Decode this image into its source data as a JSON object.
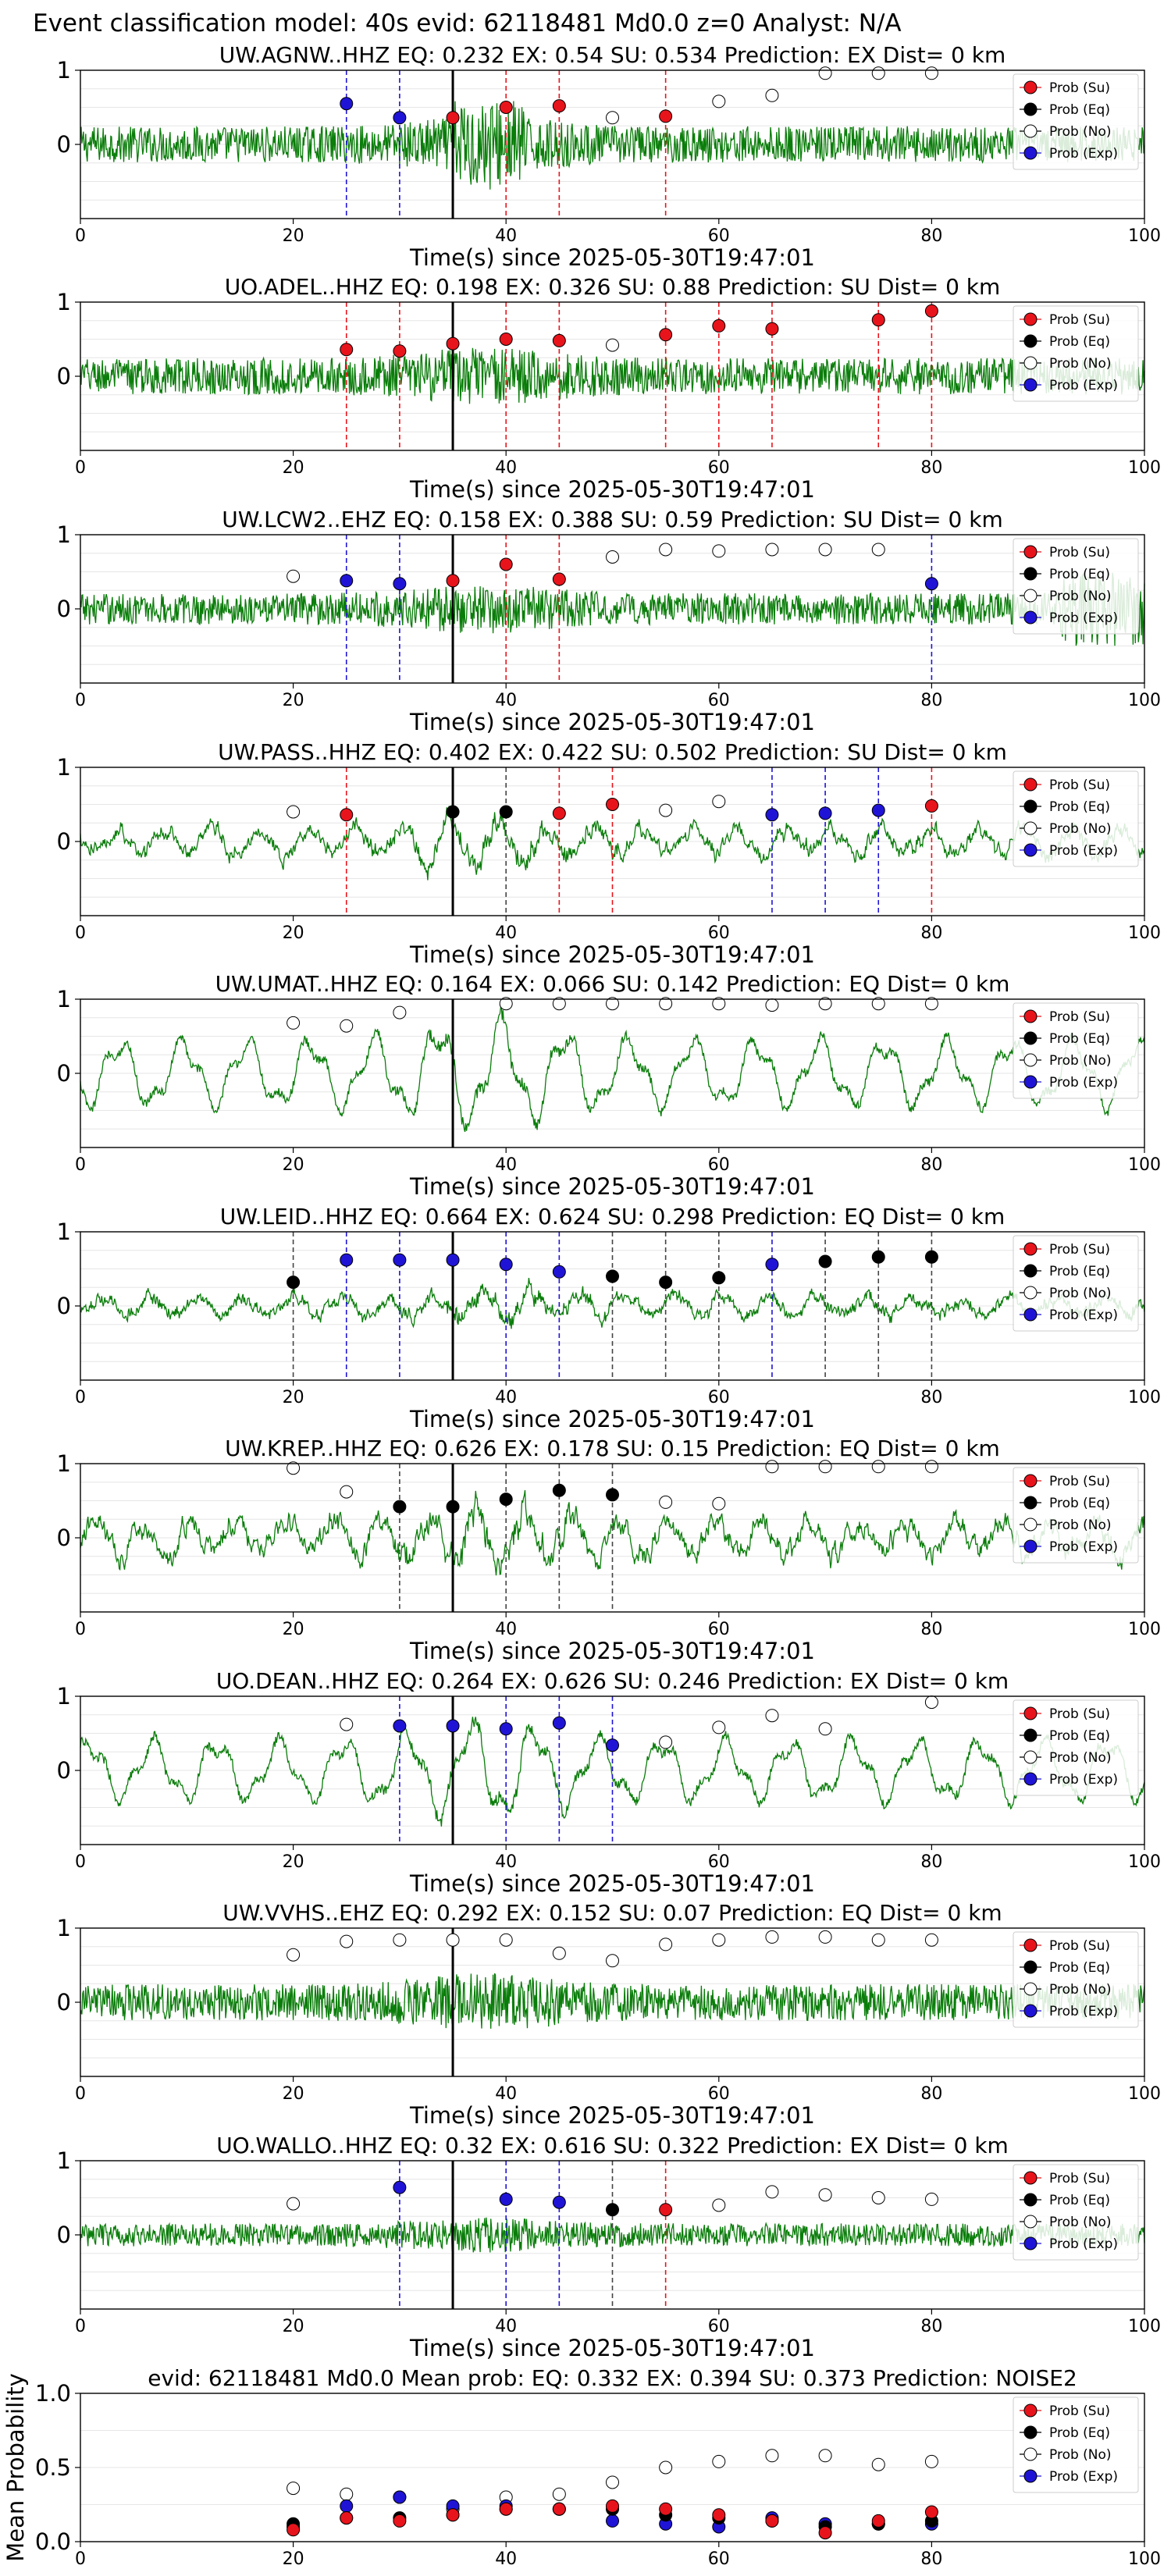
{
  "figure": {
    "title": "Event classification model: 40s evid: 62118481 Md0.0 z=0 Analyst: N/A",
    "xlabel": "Time(s) since 2025-05-30T19:47:01",
    "legend": [
      "Prob (Su)",
      "Prob (Eq)",
      "Prob (No)",
      "Prob (Exp)"
    ],
    "colors": {
      "su": "#e8141c",
      "eq": "#000000",
      "no": "#ffffff",
      "exp": "#1f14d6",
      "wave": "#0a7d0a"
    },
    "xlim": [
      0,
      100
    ],
    "ylim_station": [
      -1,
      1
    ],
    "yticks_station": [
      "1",
      "0"
    ],
    "xticks": [
      "0",
      "20",
      "40",
      "60",
      "80",
      "100"
    ],
    "arrival_time": 35
  },
  "chart_data": [
    {
      "type": "line",
      "station": "UW.AGNW..HHZ",
      "title": "UW.AGNW..HHZ   EQ: 0.232  EX: 0.54  SU: 0.534   Prediction: EX    Dist= 0 km",
      "wave_style": "noisy",
      "wave_amp": 0.35,
      "points": [
        {
          "x": 25,
          "y": 0.55,
          "c": "exp"
        },
        {
          "x": 30,
          "y": 0.36,
          "c": "exp"
        },
        {
          "x": 35,
          "y": 0.36,
          "c": "su"
        },
        {
          "x": 40,
          "y": 0.5,
          "c": "su"
        },
        {
          "x": 45,
          "y": 0.52,
          "c": "su"
        },
        {
          "x": 50,
          "y": 0.36,
          "c": "no"
        },
        {
          "x": 55,
          "y": 0.38,
          "c": "su"
        },
        {
          "x": 60,
          "y": 0.58,
          "c": "no"
        },
        {
          "x": 65,
          "y": 0.66,
          "c": "no"
        },
        {
          "x": 70,
          "y": 0.96,
          "c": "no"
        },
        {
          "x": 75,
          "y": 0.96,
          "c": "no"
        },
        {
          "x": 80,
          "y": 0.96,
          "c": "no"
        }
      ]
    },
    {
      "type": "line",
      "station": "UO.ADEL..HHZ",
      "title": "UO.ADEL..HHZ   EQ: 0.198  EX: 0.326  SU: 0.88   Prediction: SU    Dist= 0 km",
      "wave_style": "noisy",
      "wave_amp": 0.35,
      "points": [
        {
          "x": 25,
          "y": 0.36,
          "c": "su"
        },
        {
          "x": 30,
          "y": 0.34,
          "c": "su"
        },
        {
          "x": 35,
          "y": 0.44,
          "c": "su"
        },
        {
          "x": 40,
          "y": 0.5,
          "c": "su"
        },
        {
          "x": 45,
          "y": 0.48,
          "c": "su"
        },
        {
          "x": 50,
          "y": 0.42,
          "c": "no"
        },
        {
          "x": 55,
          "y": 0.56,
          "c": "su"
        },
        {
          "x": 60,
          "y": 0.68,
          "c": "su"
        },
        {
          "x": 65,
          "y": 0.64,
          "c": "su"
        },
        {
          "x": 75,
          "y": 0.76,
          "c": "su"
        },
        {
          "x": 80,
          "y": 0.88,
          "c": "su"
        }
      ]
    },
    {
      "type": "line",
      "station": "UW.LCW2..EHZ",
      "title": "UW.LCW2..EHZ   EQ: 0.158  EX: 0.388  SU: 0.59   Prediction: SU    Dist= 0 km",
      "wave_style": "noisy",
      "wave_amp": 0.3,
      "points": [
        {
          "x": 20,
          "y": 0.44,
          "c": "no"
        },
        {
          "x": 25,
          "y": 0.38,
          "c": "exp"
        },
        {
          "x": 30,
          "y": 0.34,
          "c": "exp"
        },
        {
          "x": 35,
          "y": 0.38,
          "c": "su"
        },
        {
          "x": 40,
          "y": 0.6,
          "c": "su"
        },
        {
          "x": 45,
          "y": 0.4,
          "c": "su"
        },
        {
          "x": 50,
          "y": 0.7,
          "c": "no"
        },
        {
          "x": 55,
          "y": 0.8,
          "c": "no"
        },
        {
          "x": 60,
          "y": 0.78,
          "c": "no"
        },
        {
          "x": 65,
          "y": 0.8,
          "c": "no"
        },
        {
          "x": 70,
          "y": 0.8,
          "c": "no"
        },
        {
          "x": 75,
          "y": 0.8,
          "c": "no"
        },
        {
          "x": 80,
          "y": 0.34,
          "c": "exp"
        }
      ]
    },
    {
      "type": "line",
      "station": "UW.PASS..HHZ",
      "title": "UW.PASS..HHZ   EQ: 0.402  EX: 0.422  SU: 0.502   Prediction: SU    Dist= 0 km",
      "wave_style": "medium",
      "wave_amp": 0.35,
      "points": [
        {
          "x": 20,
          "y": 0.4,
          "c": "no"
        },
        {
          "x": 25,
          "y": 0.36,
          "c": "su"
        },
        {
          "x": 35,
          "y": 0.4,
          "c": "eq"
        },
        {
          "x": 40,
          "y": 0.4,
          "c": "eq"
        },
        {
          "x": 45,
          "y": 0.38,
          "c": "su"
        },
        {
          "x": 50,
          "y": 0.5,
          "c": "su"
        },
        {
          "x": 55,
          "y": 0.42,
          "c": "no"
        },
        {
          "x": 60,
          "y": 0.54,
          "c": "no"
        },
        {
          "x": 65,
          "y": 0.36,
          "c": "exp"
        },
        {
          "x": 70,
          "y": 0.38,
          "c": "exp"
        },
        {
          "x": 75,
          "y": 0.42,
          "c": "exp"
        },
        {
          "x": 80,
          "y": 0.48,
          "c": "su"
        }
      ]
    },
    {
      "type": "line",
      "station": "UW.UMAT..HHZ",
      "title": "UW.UMAT..HHZ   EQ: 0.164  EX: 0.066  SU: 0.142   Prediction: EQ    Dist= 0 km",
      "wave_style": "smooth",
      "wave_amp": 0.55,
      "points": [
        {
          "x": 20,
          "y": 0.68,
          "c": "no"
        },
        {
          "x": 25,
          "y": 0.64,
          "c": "no"
        },
        {
          "x": 30,
          "y": 0.82,
          "c": "no"
        },
        {
          "x": 40,
          "y": 0.94,
          "c": "no"
        },
        {
          "x": 45,
          "y": 0.94,
          "c": "no"
        },
        {
          "x": 50,
          "y": 0.94,
          "c": "no"
        },
        {
          "x": 55,
          "y": 0.94,
          "c": "no"
        },
        {
          "x": 60,
          "y": 0.94,
          "c": "no"
        },
        {
          "x": 65,
          "y": 0.92,
          "c": "no"
        },
        {
          "x": 70,
          "y": 0.94,
          "c": "no"
        },
        {
          "x": 75,
          "y": 0.94,
          "c": "no"
        },
        {
          "x": 80,
          "y": 0.94,
          "c": "no"
        }
      ]
    },
    {
      "type": "line",
      "station": "UW.LEID..HHZ",
      "title": "UW.LEID..HHZ   EQ: 0.664  EX: 0.624  SU: 0.298   Prediction: EQ    Dist= 0 km",
      "wave_style": "medium",
      "wave_amp": 0.25,
      "points": [
        {
          "x": 20,
          "y": 0.32,
          "c": "eq"
        },
        {
          "x": 25,
          "y": 0.62,
          "c": "exp"
        },
        {
          "x": 30,
          "y": 0.62,
          "c": "exp"
        },
        {
          "x": 35,
          "y": 0.62,
          "c": "exp"
        },
        {
          "x": 40,
          "y": 0.56,
          "c": "exp"
        },
        {
          "x": 45,
          "y": 0.46,
          "c": "exp"
        },
        {
          "x": 50,
          "y": 0.4,
          "c": "eq"
        },
        {
          "x": 55,
          "y": 0.32,
          "c": "eq"
        },
        {
          "x": 60,
          "y": 0.38,
          "c": "eq"
        },
        {
          "x": 65,
          "y": 0.56,
          "c": "exp"
        },
        {
          "x": 70,
          "y": 0.6,
          "c": "eq"
        },
        {
          "x": 75,
          "y": 0.66,
          "c": "eq"
        },
        {
          "x": 80,
          "y": 0.66,
          "c": "eq"
        }
      ]
    },
    {
      "type": "line",
      "station": "UW.KREP..HHZ",
      "title": "UW.KREP..HHZ   EQ: 0.626  EX: 0.178  SU: 0.15   Prediction: EQ    Dist= 0 km",
      "wave_style": "medium",
      "wave_amp": 0.5,
      "points": [
        {
          "x": 20,
          "y": 0.94,
          "c": "no"
        },
        {
          "x": 25,
          "y": 0.62,
          "c": "no"
        },
        {
          "x": 30,
          "y": 0.42,
          "c": "eq"
        },
        {
          "x": 35,
          "y": 0.42,
          "c": "eq"
        },
        {
          "x": 40,
          "y": 0.52,
          "c": "eq"
        },
        {
          "x": 45,
          "y": 0.64,
          "c": "eq"
        },
        {
          "x": 50,
          "y": 0.58,
          "c": "eq"
        },
        {
          "x": 55,
          "y": 0.48,
          "c": "no"
        },
        {
          "x": 60,
          "y": 0.46,
          "c": "no"
        },
        {
          "x": 65,
          "y": 0.96,
          "c": "no"
        },
        {
          "x": 70,
          "y": 0.96,
          "c": "no"
        },
        {
          "x": 75,
          "y": 0.96,
          "c": "no"
        },
        {
          "x": 80,
          "y": 0.96,
          "c": "no"
        }
      ]
    },
    {
      "type": "line",
      "station": "UO.DEAN..HHZ",
      "title": "UO.DEAN..HHZ   EQ: 0.264  EX: 0.626  SU: 0.246   Prediction: EX    Dist= 0 km",
      "wave_style": "smooth",
      "wave_amp": 0.5,
      "points": [
        {
          "x": 25,
          "y": 0.62,
          "c": "no"
        },
        {
          "x": 30,
          "y": 0.6,
          "c": "exp"
        },
        {
          "x": 35,
          "y": 0.6,
          "c": "exp"
        },
        {
          "x": 40,
          "y": 0.56,
          "c": "exp"
        },
        {
          "x": 45,
          "y": 0.64,
          "c": "exp"
        },
        {
          "x": 50,
          "y": 0.34,
          "c": "exp"
        },
        {
          "x": 55,
          "y": 0.38,
          "c": "no"
        },
        {
          "x": 60,
          "y": 0.58,
          "c": "no"
        },
        {
          "x": 65,
          "y": 0.74,
          "c": "no"
        },
        {
          "x": 70,
          "y": 0.56,
          "c": "no"
        },
        {
          "x": 80,
          "y": 0.92,
          "c": "no"
        }
      ]
    },
    {
      "type": "line",
      "station": "UW.VVHS..EHZ",
      "title": "UW.VVHS..EHZ   EQ: 0.292  EX: 0.152  SU: 0.07   Prediction: EQ    Dist= 0 km",
      "wave_style": "noisy",
      "wave_amp": 0.35,
      "points": [
        {
          "x": 20,
          "y": 0.64,
          "c": "no"
        },
        {
          "x": 25,
          "y": 0.82,
          "c": "no"
        },
        {
          "x": 30,
          "y": 0.84,
          "c": "no"
        },
        {
          "x": 35,
          "y": 0.84,
          "c": "no"
        },
        {
          "x": 40,
          "y": 0.84,
          "c": "no"
        },
        {
          "x": 45,
          "y": 0.66,
          "c": "no"
        },
        {
          "x": 50,
          "y": 0.56,
          "c": "no"
        },
        {
          "x": 55,
          "y": 0.78,
          "c": "no"
        },
        {
          "x": 60,
          "y": 0.84,
          "c": "no"
        },
        {
          "x": 65,
          "y": 0.88,
          "c": "no"
        },
        {
          "x": 70,
          "y": 0.88,
          "c": "no"
        },
        {
          "x": 75,
          "y": 0.84,
          "c": "no"
        },
        {
          "x": 80,
          "y": 0.84,
          "c": "no"
        }
      ]
    },
    {
      "type": "line",
      "station": "UO.WALLO..HHZ",
      "title": "UO.WALLO..HHZ   EQ: 0.32  EX: 0.616  SU: 0.322   Prediction: EX    Dist= 0 km",
      "wave_style": "noisy",
      "wave_amp": 0.22,
      "points": [
        {
          "x": 20,
          "y": 0.42,
          "c": "no"
        },
        {
          "x": 30,
          "y": 0.64,
          "c": "exp"
        },
        {
          "x": 40,
          "y": 0.48,
          "c": "exp"
        },
        {
          "x": 45,
          "y": 0.44,
          "c": "exp"
        },
        {
          "x": 50,
          "y": 0.34,
          "c": "eq"
        },
        {
          "x": 55,
          "y": 0.34,
          "c": "su"
        },
        {
          "x": 60,
          "y": 0.4,
          "c": "no"
        },
        {
          "x": 65,
          "y": 0.58,
          "c": "no"
        },
        {
          "x": 70,
          "y": 0.54,
          "c": "no"
        },
        {
          "x": 75,
          "y": 0.5,
          "c": "no"
        },
        {
          "x": 80,
          "y": 0.48,
          "c": "no"
        }
      ]
    },
    {
      "type": "scatter",
      "title": "evid: 62118481  Md0.0   Mean prob:   EQ: 0.332  EX: 0.394  SU: 0.373   Prediction: NOISE2",
      "ylabel": "Mean Probability",
      "ylim": [
        0,
        1
      ],
      "yticks": [
        "1.0",
        "0.5",
        "0.0"
      ],
      "x": [
        20,
        25,
        30,
        35,
        40,
        45,
        50,
        55,
        60,
        65,
        70,
        75,
        80
      ],
      "series": [
        {
          "key": "no",
          "values": [
            0.36,
            0.32,
            0.3,
            0.22,
            0.3,
            0.32,
            0.4,
            0.5,
            0.54,
            0.58,
            0.58,
            0.52,
            0.54
          ]
        },
        {
          "key": "exp",
          "values": [
            0.1,
            0.24,
            0.3,
            0.24,
            0.24,
            0.22,
            0.14,
            0.12,
            0.1,
            0.16,
            0.12,
            0.12,
            0.12
          ]
        },
        {
          "key": "eq",
          "values": [
            0.12,
            0.16,
            0.16,
            0.18,
            0.22,
            0.22,
            0.22,
            0.18,
            0.16,
            0.14,
            0.1,
            0.12,
            0.14
          ]
        },
        {
          "key": "su",
          "values": [
            0.08,
            0.16,
            0.14,
            0.18,
            0.22,
            0.22,
            0.24,
            0.22,
            0.18,
            0.14,
            0.06,
            0.14,
            0.2
          ]
        }
      ]
    }
  ]
}
